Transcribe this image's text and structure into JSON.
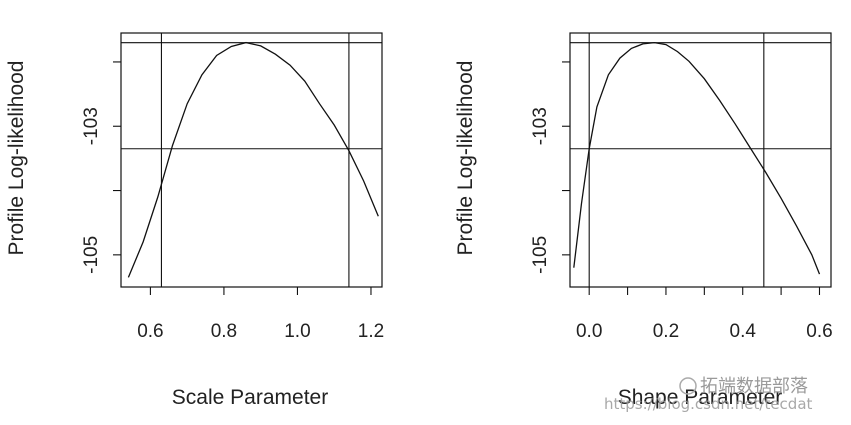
{
  "chart_data": [
    {
      "type": "line",
      "title": "",
      "xlabel": "Scale Parameter",
      "ylabel": "Profile Log-likelihood",
      "xlim": [
        0.52,
        1.23
      ],
      "ylim": [
        -105.5,
        -101.55
      ],
      "xticks": [
        0.6,
        0.8,
        1.0,
        1.2
      ],
      "xtick_labels": [
        "0.6",
        "0.8",
        "1.0",
        "1.2"
      ],
      "yticks": [
        -105,
        -104,
        -103,
        -102
      ],
      "ytick_labels": [
        "-105",
        "-103"
      ],
      "grid": false,
      "series": [
        {
          "x": [
            0.54,
            0.58,
            0.62,
            0.66,
            0.7,
            0.74,
            0.78,
            0.82,
            0.86,
            0.9,
            0.94,
            0.98,
            1.02,
            1.06,
            1.1,
            1.14,
            1.18,
            1.22
          ],
          "y": [
            -105.35,
            -104.8,
            -104.1,
            -103.3,
            -102.65,
            -102.2,
            -101.9,
            -101.76,
            -101.7,
            -101.75,
            -101.88,
            -102.05,
            -102.3,
            -102.65,
            -102.98,
            -103.38,
            -103.85,
            -104.4
          ]
        }
      ],
      "reference_lines": {
        "h": [
          -101.7,
          -103.35
        ],
        "v": [
          0.63,
          1.14
        ]
      }
    },
    {
      "type": "line",
      "title": "",
      "xlabel": "Shape Parameter",
      "ylabel": "Profile Log-likelihood",
      "xlim": [
        -0.05,
        0.63
      ],
      "ylim": [
        -105.5,
        -101.55
      ],
      "xticks": [
        0.0,
        0.1,
        0.2,
        0.3,
        0.4,
        0.5,
        0.6
      ],
      "xtick_labels": [
        "0.0",
        "0.2",
        "0.4",
        "0.6"
      ],
      "yticks": [
        -105,
        -104,
        -103,
        -102
      ],
      "ytick_labels": [
        "-105",
        "-103"
      ],
      "grid": false,
      "series": [
        {
          "x": [
            -0.04,
            -0.02,
            0.0,
            0.02,
            0.05,
            0.08,
            0.11,
            0.14,
            0.17,
            0.2,
            0.23,
            0.26,
            0.3,
            0.34,
            0.38,
            0.42,
            0.46,
            0.5,
            0.54,
            0.58,
            0.6
          ],
          "y": [
            -105.2,
            -104.2,
            -103.35,
            -102.7,
            -102.2,
            -101.94,
            -101.79,
            -101.72,
            -101.7,
            -101.73,
            -101.84,
            -101.99,
            -102.26,
            -102.6,
            -102.96,
            -103.34,
            -103.72,
            -104.12,
            -104.55,
            -105.0,
            -105.3
          ]
        }
      ],
      "reference_lines": {
        "h": [
          -101.7,
          -103.35
        ],
        "v": [
          0.0,
          0.455
        ]
      }
    }
  ],
  "watermark": {
    "line1": "拓端数据部落",
    "line2": "https://blog.csdn.net/tecdat"
  }
}
